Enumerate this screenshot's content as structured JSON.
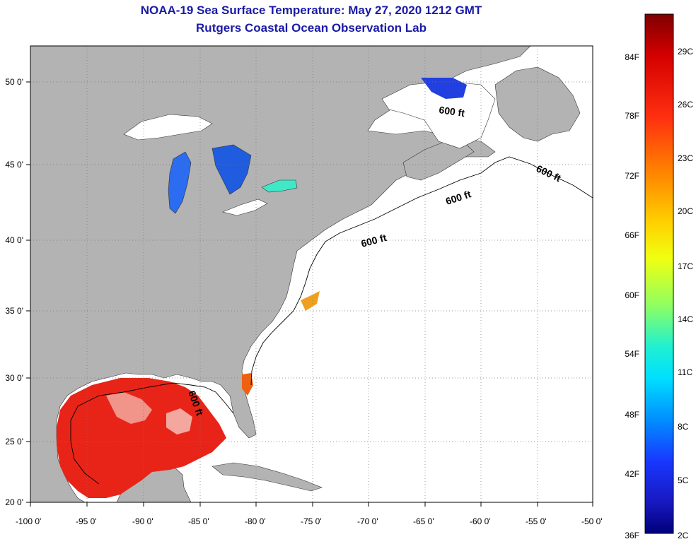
{
  "title": "NOAA-19 Sea Surface Temperature:  May 27, 2020 1212 GMT",
  "subtitle": "Rutgers Coastal Ocean Observation Lab",
  "map": {
    "lon_range": [
      -100,
      -50
    ],
    "lat_range": [
      20,
      52.5
    ],
    "x_ticks": [
      "-100 0'",
      "-95 0'",
      "-90 0'",
      "-85 0'",
      "-80 0'",
      "-75 0'",
      "-70 0'",
      "-65 0'",
      "-60 0'",
      "-55 0'",
      "-50 0'"
    ],
    "y_ticks": [
      "50 0'",
      "45 0'",
      "40 0'",
      "35 0'",
      "30 0'",
      "25 0'",
      "20 0'"
    ],
    "contour_label": "600 ft",
    "land_color": "#b3b3b3",
    "grid": "dotted"
  },
  "colorbar": {
    "f_labels": [
      "84F",
      "78F",
      "72F",
      "66F",
      "60F",
      "54F",
      "48F",
      "42F",
      "36F"
    ],
    "c_labels": [
      "29C",
      "26C",
      "23C",
      "20C",
      "17C",
      "14C",
      "11C",
      "8C",
      "5C",
      "2C"
    ],
    "colors": [
      "#7f0000",
      "#e01010",
      "#ff6a00",
      "#ffd200",
      "#f0ff10",
      "#9bff50",
      "#20e0c0",
      "#00e5ff",
      "#0090ff",
      "#1030ff",
      "#1818c8",
      "#00007a"
    ]
  }
}
